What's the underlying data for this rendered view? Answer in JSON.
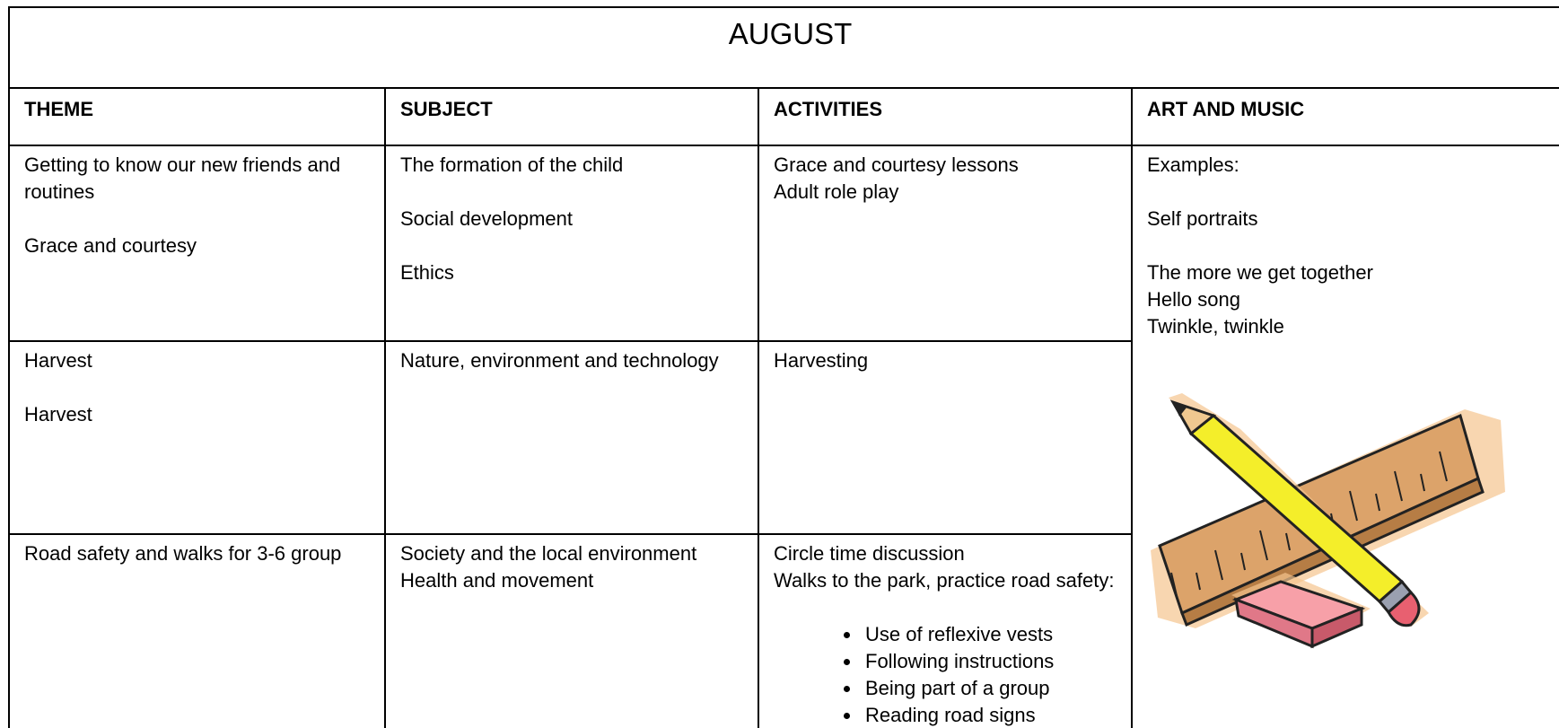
{
  "title": "AUGUST",
  "table": {
    "headers": [
      "THEME",
      "SUBJECT",
      "ACTIVITIES",
      "ART AND MUSIC"
    ],
    "rows": [
      {
        "theme": [
          [
            "Getting to know our new friends and routines"
          ],
          [
            "Grace and courtesy"
          ]
        ],
        "subject": [
          [
            "The formation of the child"
          ],
          [
            "Social development"
          ],
          [
            "Ethics"
          ]
        ],
        "activities": [
          [
            "Grace and courtesy lessons",
            "Adult role play"
          ]
        ]
      },
      {
        "theme": [
          [
            "Harvest"
          ],
          [
            "Harvest"
          ]
        ],
        "subject": [
          [
            "Nature, environment and technology"
          ]
        ],
        "activities": [
          [
            "Harvesting"
          ]
        ]
      },
      {
        "theme": [
          [
            "Road safety and walks for 3-6 group"
          ]
        ],
        "subject": [
          [
            "Society and the local environment",
            "Health and movement"
          ]
        ],
        "activities": [
          [
            "Circle time discussion",
            "Walks to the park, practice road safety:"
          ]
        ],
        "activity_bullets": [
          "Use of reflexive vests",
          "Following instructions",
          "Being part of a group",
          "Reading road signs"
        ]
      }
    ],
    "art": [
      [
        "Examples:"
      ],
      [
        "Self portraits"
      ],
      [
        "The more we get together",
        "Hello song",
        "Twinkle, twinkle"
      ]
    ]
  }
}
